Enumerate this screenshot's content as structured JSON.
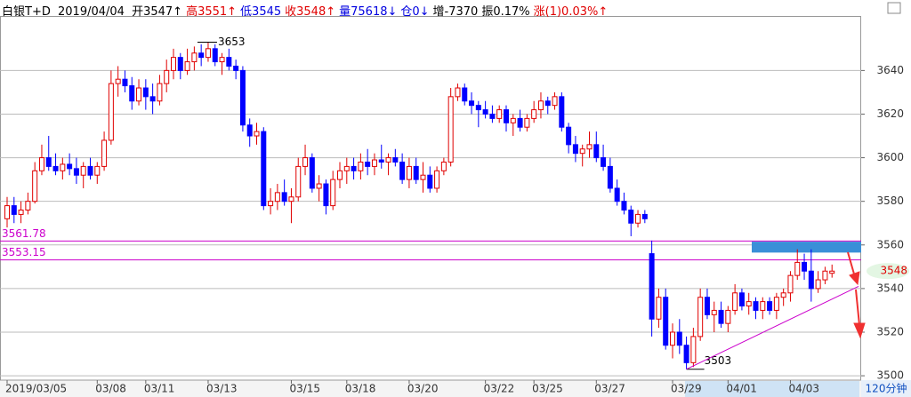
{
  "chart_data": {
    "type": "candlestick",
    "title": "白银T+D",
    "date": "2019/04/04",
    "stats": [
      {
        "text": "开3547↑",
        "color": "#000000"
      },
      {
        "text": "高3551↑",
        "color": "#e00000"
      },
      {
        "text": "低3545",
        "color": "#0000e0"
      },
      {
        "text": "收3548↑",
        "color": "#e00000"
      },
      {
        "text": "量75618↓",
        "color": "#0000e0"
      },
      {
        "text": "仓0↓",
        "color": "#0000e0"
      },
      {
        "text": "增-7370",
        "color": "#000000"
      },
      {
        "text": "振0.17%",
        "color": "#000000"
      },
      {
        "text": "涨(1)0.03%↑",
        "color": "#e00000"
      }
    ],
    "period": "120分钟",
    "categories": [
      "2019/03/05",
      null,
      null,
      null,
      null,
      null,
      null,
      null,
      null,
      null,
      null,
      null,
      null,
      "03/08",
      null,
      null,
      null,
      null,
      null,
      null,
      "03/11",
      null,
      null,
      null,
      null,
      null,
      null,
      null,
      null,
      "03/13",
      null,
      null,
      null,
      null,
      null,
      null,
      null,
      null,
      null,
      null,
      null,
      "03/15",
      null,
      null,
      null,
      null,
      null,
      null,
      null,
      "03/18",
      null,
      null,
      null,
      null,
      null,
      null,
      null,
      null,
      "03/20",
      null,
      null,
      null,
      null,
      null,
      null,
      null,
      null,
      null,
      null,
      "03/22",
      null,
      null,
      null,
      null,
      null,
      null,
      "03/25",
      null,
      null,
      null,
      null,
      null,
      null,
      null,
      null,
      "03/27",
      null,
      null,
      null,
      null,
      null,
      null,
      null,
      null,
      null,
      null,
      "03/29",
      null,
      null,
      null,
      null,
      null,
      null,
      null,
      "04/01",
      null,
      null,
      null,
      null,
      null,
      null,
      null,
      null,
      "04/03",
      null,
      null,
      null,
      null,
      null,
      null
    ],
    "open": [
      3572,
      3578,
      3574,
      3576,
      3580,
      3594,
      3600,
      3596,
      3594,
      3597,
      3595,
      3592,
      3596,
      3592,
      3596,
      3608,
      3634,
      3636,
      3633,
      3626,
      3632,
      3628,
      3626,
      3634,
      3640,
      3646,
      3640,
      3644,
      3648,
      3646,
      3650,
      3644,
      3646,
      3642,
      3640,
      3615,
      3610,
      3612,
      3578,
      3580,
      3584,
      3580,
      3582,
      3596,
      3600,
      3586,
      3588,
      3578,
      3590,
      3594,
      3596,
      3594,
      3598,
      3596,
      3599,
      3598,
      3600,
      3598,
      3590,
      3596,
      3590,
      3592,
      3586,
      3594,
      3598,
      3628,
      3632,
      3626,
      3624,
      3622,
      3620,
      3618,
      3622,
      3616,
      3618,
      3614,
      3618,
      3622,
      3626,
      3624,
      3628,
      3614,
      3606,
      3602,
      3604,
      3606,
      3600,
      3596,
      3586,
      3580,
      3576,
      3570,
      3574,
      3556,
      3526,
      3536,
      3514,
      3520,
      3514,
      3506,
      3518,
      3536,
      3528,
      3530,
      3524,
      3530,
      3538,
      3532,
      3534,
      3530,
      3534,
      3530,
      3536,
      3538,
      3546,
      3552,
      3548,
      3540,
      3544,
      3547
    ],
    "high": [
      3582,
      3582,
      3580,
      3584,
      3598,
      3606,
      3610,
      3602,
      3600,
      3602,
      3600,
      3598,
      3600,
      3598,
      3612,
      3640,
      3642,
      3640,
      3637,
      3636,
      3636,
      3634,
      3638,
      3645,
      3650,
      3648,
      3650,
      3651,
      3652,
      3653,
      3652,
      3648,
      3650,
      3645,
      3642,
      3618,
      3616,
      3614,
      3586,
      3588,
      3590,
      3586,
      3600,
      3606,
      3602,
      3592,
      3590,
      3594,
      3598,
      3600,
      3600,
      3602,
      3604,
      3602,
      3606,
      3602,
      3604,
      3602,
      3600,
      3600,
      3598,
      3596,
      3596,
      3600,
      3632,
      3634,
      3634,
      3630,
      3626,
      3626,
      3624,
      3624,
      3624,
      3620,
      3622,
      3620,
      3626,
      3630,
      3628,
      3630,
      3630,
      3616,
      3610,
      3606,
      3612,
      3612,
      3606,
      3600,
      3590,
      3584,
      3578,
      3576,
      3576,
      3562,
      3540,
      3540,
      3524,
      3526,
      3518,
      3522,
      3540,
      3540,
      3534,
      3534,
      3532,
      3542,
      3540,
      3538,
      3536,
      3536,
      3536,
      3538,
      3540,
      3548,
      3558,
      3556,
      3558,
      3548,
      3550,
      3551
    ],
    "low": [
      3568,
      3570,
      3570,
      3574,
      3579,
      3592,
      3594,
      3592,
      3590,
      3592,
      3588,
      3586,
      3590,
      3588,
      3594,
      3606,
      3628,
      3630,
      3622,
      3624,
      3622,
      3620,
      3624,
      3630,
      3636,
      3636,
      3638,
      3640,
      3642,
      3644,
      3642,
      3638,
      3640,
      3636,
      3612,
      3605,
      3606,
      3576,
      3574,
      3576,
      3578,
      3570,
      3580,
      3592,
      3584,
      3580,
      3574,
      3576,
      3586,
      3588,
      3590,
      3590,
      3592,
      3592,
      3595,
      3592,
      3596,
      3588,
      3586,
      3588,
      3584,
      3584,
      3584,
      3592,
      3596,
      3626,
      3624,
      3620,
      3614,
      3618,
      3616,
      3616,
      3612,
      3610,
      3612,
      3612,
      3616,
      3618,
      3620,
      3622,
      3612,
      3602,
      3598,
      3596,
      3600,
      3598,
      3594,
      3584,
      3578,
      3574,
      3564,
      3568,
      3570,
      3518,
      3522,
      3512,
      3508,
      3510,
      3503,
      3504,
      3516,
      3526,
      3520,
      3522,
      3520,
      3528,
      3530,
      3528,
      3526,
      3526,
      3528,
      3526,
      3532,
      3534,
      3544,
      3544,
      3534,
      3538,
      3542,
      3545
    ],
    "close": [
      3578,
      3574,
      3576,
      3580,
      3594,
      3600,
      3596,
      3594,
      3597,
      3595,
      3592,
      3596,
      3592,
      3596,
      3608,
      3634,
      3636,
      3633,
      3626,
      3632,
      3628,
      3626,
      3634,
      3640,
      3646,
      3640,
      3644,
      3648,
      3646,
      3650,
      3644,
      3646,
      3642,
      3640,
      3615,
      3610,
      3612,
      3578,
      3580,
      3584,
      3580,
      3582,
      3596,
      3600,
      3586,
      3588,
      3578,
      3590,
      3594,
      3596,
      3594,
      3598,
      3596,
      3599,
      3598,
      3600,
      3598,
      3590,
      3596,
      3590,
      3592,
      3586,
      3594,
      3598,
      3628,
      3632,
      3626,
      3624,
      3622,
      3620,
      3618,
      3622,
      3616,
      3618,
      3614,
      3618,
      3622,
      3626,
      3624,
      3628,
      3614,
      3606,
      3602,
      3604,
      3606,
      3600,
      3596,
      3586,
      3580,
      3576,
      3570,
      3574,
      3572,
      3526,
      3536,
      3514,
      3520,
      3514,
      3506,
      3518,
      3536,
      3528,
      3530,
      3524,
      3530,
      3538,
      3532,
      3534,
      3530,
      3534,
      3530,
      3536,
      3538,
      3546,
      3552,
      3548,
      3540,
      3544,
      3548,
      3548
    ],
    "up_color": "#e00000",
    "down_color": "#0000ff",
    "ylim": [
      3498,
      3665
    ],
    "yticks": [
      3500,
      3520,
      3540,
      3560,
      3580,
      3600,
      3620,
      3640
    ],
    "grid": true,
    "levels": [
      3561.78,
      3553.15
    ],
    "level_color": "#cc00cc",
    "peak_label": 3653,
    "trough_label": 3503,
    "trendline": [
      3503,
      3541
    ],
    "zone": [
      3556.5,
      3561.5
    ],
    "zone_color": "#3a8fd8",
    "last_price": 3548
  }
}
